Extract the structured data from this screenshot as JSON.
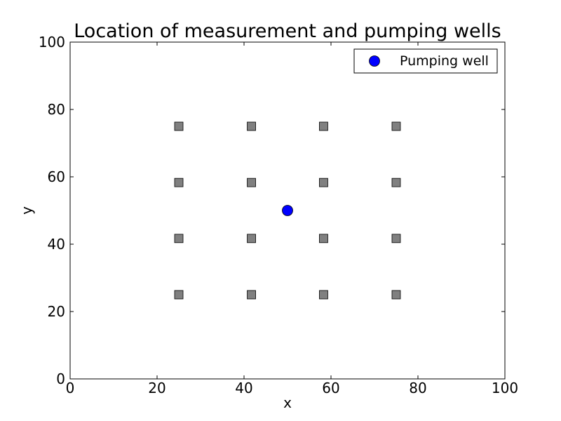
{
  "chart_data": {
    "type": "scatter",
    "title": "Location of measurement and pumping wells",
    "xlabel": "x",
    "ylabel": "y",
    "xlim": [
      0,
      100
    ],
    "ylim": [
      0,
      100
    ],
    "xticks": [
      "0",
      "20",
      "40",
      "60",
      "80",
      "100"
    ],
    "yticks": [
      "0",
      "20",
      "40",
      "60",
      "80",
      "100"
    ],
    "grid": false,
    "legend_position": "top-right",
    "series": [
      {
        "name": "Pumping well",
        "marker": "circle",
        "color": "#0000ff",
        "points": [
          [
            50,
            50
          ]
        ]
      },
      {
        "marker": "square",
        "color": "#808080",
        "points": [
          [
            25,
            75
          ],
          [
            41.7,
            75
          ],
          [
            58.3,
            75
          ],
          [
            75,
            75
          ],
          [
            25,
            58.3
          ],
          [
            41.7,
            58.3
          ],
          [
            58.3,
            58.3
          ],
          [
            75,
            58.3
          ],
          [
            25,
            41.7
          ],
          [
            41.7,
            41.7
          ],
          [
            58.3,
            41.7
          ],
          [
            75,
            41.7
          ],
          [
            25,
            25
          ],
          [
            41.7,
            25
          ],
          [
            58.3,
            25
          ],
          [
            75,
            25
          ]
        ]
      }
    ]
  }
}
